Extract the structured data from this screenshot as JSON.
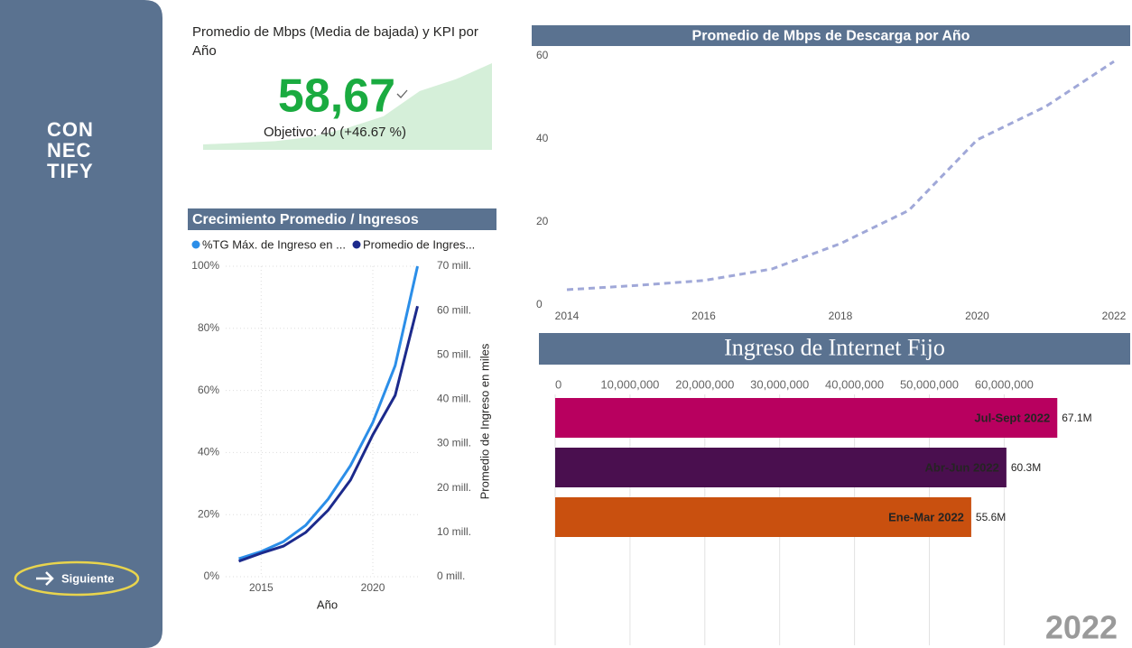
{
  "sidebar": {
    "logo": [
      "CON",
      "NEC",
      "TIFY"
    ],
    "button": "Siguiente"
  },
  "year_badge": "2022",
  "chart_data": [
    {
      "type": "kpi",
      "title": "Promedio de Mbps (Media de bajada) y KPI por Año",
      "value": 58.67,
      "value_label": "58,67",
      "target": 40,
      "target_label": "Objetivo: 40 (+46.67 %)",
      "color": "#1aab40",
      "trend_color": "#d5efd9",
      "trend": [
        3.7,
        4.7,
        5.9,
        8.7,
        14.8,
        22.8,
        39.8,
        47.8,
        58.67
      ]
    },
    {
      "type": "line",
      "title": "Promedio de Mbps de Descarga por Año",
      "x": [
        2014,
        2015,
        2016,
        2017,
        2018,
        2019,
        2020,
        2021,
        2022
      ],
      "values": [
        3.7,
        4.7,
        5.9,
        8.7,
        14.8,
        22.8,
        39.8,
        47.8,
        58.67
      ],
      "color": "#a0a8d8",
      "dashed": true,
      "xlim": [
        2014,
        2022
      ],
      "xticks": [
        2014,
        2016,
        2018,
        2020,
        2022
      ],
      "ylim": [
        0,
        60
      ],
      "yticks": [
        0,
        20,
        40,
        60
      ],
      "grid": false
    },
    {
      "type": "line",
      "title": "Crecimiento Promedio / Ingresos",
      "x": [
        2014,
        2015,
        2016,
        2017,
        2018,
        2019,
        2020,
        2021,
        2022
      ],
      "series": [
        {
          "name": "%TG Máx. de Ingreso en ...",
          "color": "#2b8ee8",
          "values": [
            5.8,
            8.1,
            11.3,
            16.6,
            25,
            35.8,
            49.7,
            68,
            100
          ]
        },
        {
          "name": "Promedio de Ingres...",
          "color": "#1c2a8c",
          "axis": "y2",
          "values": [
            3.5,
            5.3,
            6.9,
            10,
            15,
            21.8,
            32,
            40.9,
            61
          ]
        }
      ],
      "xlim": [
        2012.2,
        2022.1
      ],
      "xticks": [
        2015,
        2020
      ],
      "xlabel": "Año",
      "ylim": [
        0,
        100
      ],
      "yticks": [
        {
          "value": 0,
          "label": "0%"
        },
        {
          "value": 20,
          "label": "20%"
        },
        {
          "value": 40,
          "label": "40%"
        },
        {
          "value": 60,
          "label": "60%"
        },
        {
          "value": 80,
          "label": "80%"
        },
        {
          "value": 100,
          "label": "100%"
        }
      ],
      "y2lim": [
        0,
        70
      ],
      "y2ticks": [
        {
          "value": 0,
          "label": "0 mill."
        },
        {
          "value": 10,
          "label": "10 mill."
        },
        {
          "value": 20,
          "label": "20 mill."
        },
        {
          "value": 30,
          "label": "30 mill."
        },
        {
          "value": 40,
          "label": "40 mill."
        },
        {
          "value": 50,
          "label": "50 mill."
        },
        {
          "value": 60,
          "label": "60 mill."
        },
        {
          "value": 70,
          "label": "70 mill."
        }
      ],
      "y2label": "Promedio de Ingreso en miles",
      "grid": true
    },
    {
      "type": "bar",
      "orientation": "horizontal",
      "title": "Ingreso de Internet Fijo",
      "categories": [
        "Jul-Sept 2022",
        "Abr-Jun 2022",
        "Ene-Mar 2022"
      ],
      "values": [
        67100000,
        60300000,
        55600000
      ],
      "value_labels": [
        "67.1M",
        "60.3M",
        "55.6M"
      ],
      "colors": [
        "#b8005f",
        "#4a0f4f",
        "#c9500f"
      ],
      "xlim": [
        0,
        76600000
      ],
      "xticks": [
        0,
        {
          "value": 10000000,
          "label": "10,000,000"
        },
        {
          "value": 20000000,
          "label": "20,000,000"
        },
        {
          "value": 30000000,
          "label": "30,000,000"
        },
        {
          "value": 40000000,
          "label": "40,000,000"
        },
        {
          "value": 50000000,
          "label": "50,000,000"
        },
        {
          "value": 60000000,
          "label": "60,000,000"
        }
      ],
      "grid": true
    }
  ]
}
